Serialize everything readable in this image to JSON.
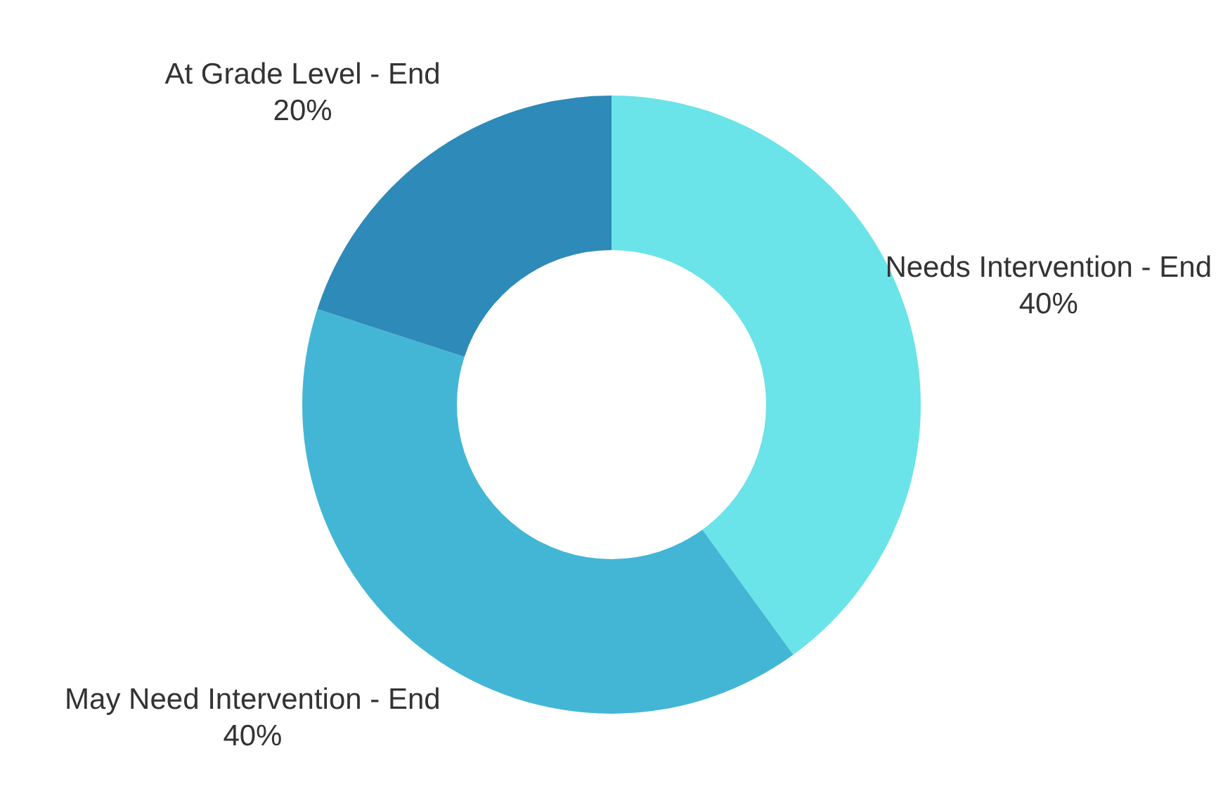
{
  "chart_data": {
    "type": "donut",
    "categories": [
      "Needs Intervention - End",
      "May Need Intervention - End",
      "At Grade Level - End"
    ],
    "values": [
      40,
      40,
      20
    ],
    "value_labels": [
      "40%",
      "40%",
      "20%"
    ],
    "colors": [
      "#6ae4e8",
      "#43b6d6",
      "#2e8ab8"
    ],
    "legend": false
  }
}
